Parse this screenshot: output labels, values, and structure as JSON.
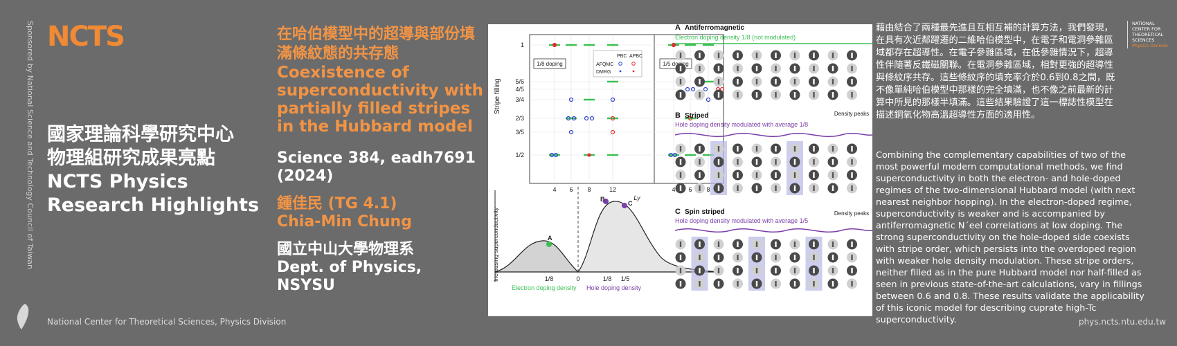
{
  "sponsor": "Sponsored by National Science and Technology Council of Taiwan",
  "logo": "NCTS",
  "heading_lines": [
    "國家理論科學研究中心",
    "物理組研究成果亮點",
    "NCTS Physics",
    "Research Highlights"
  ],
  "footer_left": "National Center for Theoretical Sciences, Physics Division",
  "title_zh": "在哈伯模型中的超導與部份填滿條紋態的共存態",
  "title_en": "Coexistence of superconductivity with partially filled stripes in the Hubbard model",
  "journal": "Science 384, eadh7691 (2024)",
  "author_zh": "鍾佳民 (TG 4.1)",
  "author_en": "Chia-Min Chung",
  "affil_zh": "國立中山大學物理系",
  "affil_en": "Dept. of Physics, NSYSU",
  "figure": {
    "chart_ylabel": "Stripe filling",
    "chart_yticks": [
      "1",
      "5/6",
      "4/5",
      "3/4",
      "2/3",
      "3/5",
      "1/2"
    ],
    "chart_xticks": [
      "4",
      "6",
      "8",
      "12",
      "4",
      "6",
      "8",
      "12"
    ],
    "chart_xlabel": "Ly",
    "left_box": "1/8 doping",
    "right_box": "1/5 doping",
    "legend_pbc": "PBC",
    "legend_apbc": "APBC",
    "legend_afqmc": "AFQMC",
    "legend_dmrg": "DMRG",
    "dome_ylabel": "Increasing superconductivity",
    "dome_ticks": [
      "1/8",
      "0",
      "1/8",
      "1/5"
    ],
    "dome_points": [
      "A",
      "B",
      "C"
    ],
    "dome_electron": "Electron doping density",
    "dome_hole": "Hole doping density",
    "panel_a_letter": "A",
    "panel_a_title": "Antiferromagnetic",
    "panel_a_sub": "Electron doping density 1/8 (not modulated)",
    "panel_b_letter": "B",
    "panel_b_title": "Striped",
    "panel_b_sub": "Hole doping density modulated with average 1/8",
    "panel_c_letter": "C",
    "panel_c_title": "Spin striped",
    "panel_c_sub": "Hole doping density modulated with average 1/5",
    "density_peaks": "Density peaks"
  },
  "abstract_zh": "藉由結合了兩種最先進且互相互補的計算方法，我們發現，在具有次近鄰躍遷的二維哈伯模型中，在電子和電洞參雜區域都存在超導性。在電子參雜區域，在低參雜情況下，超導性伴隨著反鐵磁關聯。在電洞參雜區域，相對更強的超導性與條紋序共存。這些條紋序的填充率介於0.6到0.8之間，既不像單純哈伯模型中那樣的完全填滿，也不像之前最新的計算中所見的那樣半填滿。這些結果驗證了這一標誌性模型在描述銅氧化物高溫超導性方面的適用性。",
  "abstract_en": "Combining the complementary capabilities of two of the most powerful modern computational methods, we find superconductivity in both the electron- and hole-doped regimes of the two-dimensional Hubbard model (with next nearest neighbor hopping). In the electron-doped regime, superconductivity is weaker and is accompanied by antiferromagnetic N´eel correlations at low doping. The strong superconductivity on the hole-doped side coexists with stripe order, which persists into the overdoped region with weaker hole density modulation. These stripe orders, neither filled as in the pure Hubbard model nor half-filled as seen in previous state-of-the-art calculations, vary in fillings between 0.6 and 0.8. These results validate the applicability of this iconic model for describing cuprate high-Tc superconductivity.",
  "ncts_mini": [
    "NATIONAL",
    "CENTER FOR",
    "THEORETICAL",
    "SCIENCES",
    "Physics Division"
  ],
  "footer_right": "phys.ncts.ntu.edu.tw"
}
